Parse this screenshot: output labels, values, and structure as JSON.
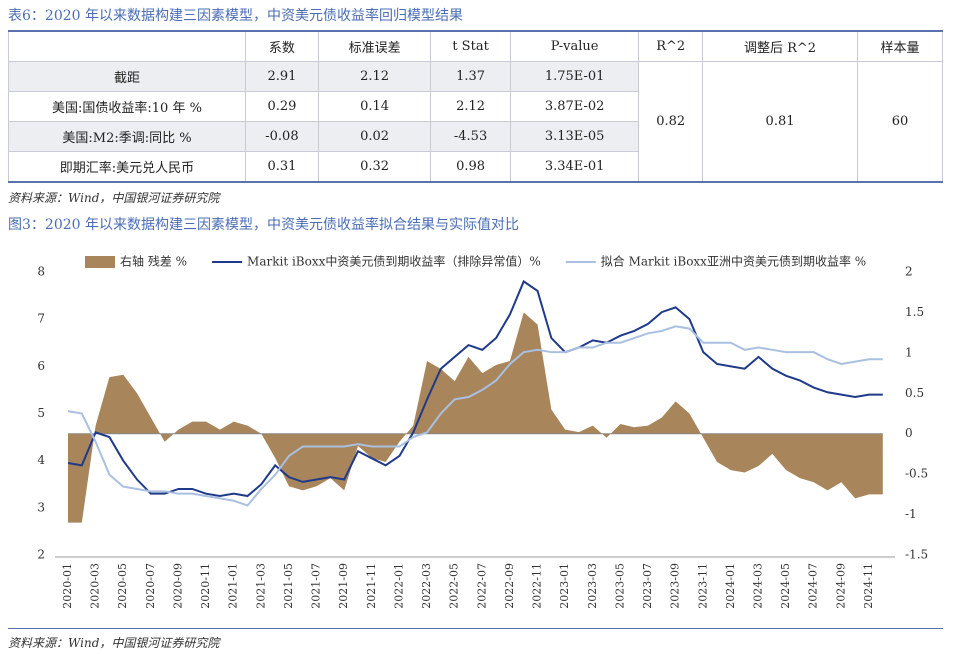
{
  "table": {
    "caption": "表6：2020 年以来数据构建三因素模型，中资美元债收益率回归模型结果",
    "columns": [
      "系数",
      "标准误差",
      "t Stat",
      "P-value",
      "R^2",
      "调整后 R^2",
      "样本量"
    ],
    "rows": [
      [
        "截距",
        "2.91",
        "2.12",
        "1.37",
        "1.75E-01"
      ],
      [
        "美国:国债收益率:10 年 %",
        "0.29",
        "0.14",
        "2.12",
        "3.87E-02"
      ],
      [
        "美国:M2:季调:同比 %",
        "-0.08",
        "0.02",
        "-4.53",
        "3.13E-05"
      ],
      [
        "即期汇率:美元兑人民币",
        "0.31",
        "0.32",
        "0.98",
        "3.34E-01"
      ]
    ],
    "stats": [
      "0.82",
      "0.81",
      "60"
    ],
    "source": "资料来源：Wind，中国银河证券研究院"
  },
  "chart_data": {
    "type": "line",
    "title": "图3：2020 年以来数据构建三因素模型，中资美元债收益率拟合结果与实际值对比",
    "source": "资料来源：Wind，中国银河证券研究院",
    "legend": "top",
    "categories": [
      "2020-01",
      null,
      "2020-03",
      null,
      "2020-05",
      null,
      "2020-07",
      null,
      "2020-09",
      null,
      "2020-11",
      null,
      "2021-01",
      null,
      "2021-03",
      null,
      "2021-05",
      null,
      "2021-07",
      null,
      "2021-09",
      null,
      "2021-11",
      null,
      "2022-01",
      null,
      "2022-03",
      null,
      "2022-05",
      null,
      "2022-07",
      null,
      "2022-09",
      null,
      "2022-11",
      null,
      "2023-01",
      null,
      "2023-03",
      null,
      "2023-05",
      null,
      "2023-07",
      null,
      "2023-09",
      null,
      "2023-11",
      null,
      "2024-01",
      null,
      "2024-03",
      null,
      "2024-05",
      null,
      "2024-07",
      null,
      "2024-09",
      null,
      "2024-11",
      null
    ],
    "series": [
      {
        "name": "右轴 残差 %",
        "kind": "area",
        "axis": "y2",
        "color": "#a8855a",
        "values": [
          -1.1,
          -1.1,
          0.1,
          0.7,
          0.73,
          0.5,
          0.2,
          -0.1,
          0.05,
          0.15,
          0.15,
          0.05,
          0.15,
          0.1,
          0.0,
          -0.3,
          -0.65,
          -0.7,
          -0.65,
          -0.55,
          -0.7,
          -0.15,
          -0.3,
          -0.35,
          -0.1,
          0.1,
          0.9,
          0.8,
          0.65,
          0.95,
          0.75,
          0.85,
          0.9,
          1.5,
          1.35,
          0.3,
          0.05,
          0.02,
          0.1,
          -0.05,
          0.12,
          0.08,
          0.1,
          0.2,
          0.4,
          0.25,
          -0.05,
          -0.35,
          -0.45,
          -0.48,
          -0.4,
          -0.25,
          -0.45,
          -0.55,
          -0.6,
          -0.7,
          -0.6,
          -0.8,
          -0.75,
          -0.75
        ]
      },
      {
        "name": "Markit iBoxx中资美元债到期收益率（排除异常值）%",
        "kind": "line",
        "color": "#1f3a8a",
        "values": [
          3.95,
          3.9,
          4.6,
          4.5,
          4.0,
          3.6,
          3.3,
          3.3,
          3.4,
          3.4,
          3.3,
          3.25,
          3.3,
          3.25,
          3.5,
          3.9,
          3.65,
          3.55,
          3.6,
          3.65,
          3.6,
          4.2,
          4.05,
          3.9,
          4.1,
          4.6,
          5.3,
          5.95,
          6.2,
          6.45,
          6.35,
          6.6,
          7.1,
          7.8,
          7.6,
          6.6,
          6.3,
          6.4,
          6.55,
          6.5,
          6.65,
          6.75,
          6.9,
          7.15,
          7.25,
          7.0,
          6.3,
          6.05,
          6.0,
          5.95,
          6.2,
          5.95,
          5.8,
          5.7,
          5.55,
          5.45,
          5.4,
          5.35,
          5.4,
          5.4
        ]
      },
      {
        "name": "拟合 Markit iBoxx亚洲中资美元债到期收益率 %",
        "kind": "line",
        "color": "#a9c0e0",
        "values": [
          5.05,
          5.0,
          4.4,
          3.7,
          3.45,
          3.4,
          3.35,
          3.35,
          3.3,
          3.3,
          3.25,
          3.2,
          3.15,
          3.05,
          3.4,
          3.7,
          4.1,
          4.3,
          4.3,
          4.3,
          4.3,
          4.35,
          4.3,
          4.3,
          4.3,
          4.5,
          4.6,
          5.0,
          5.3,
          5.35,
          5.5,
          5.7,
          6.05,
          6.3,
          6.35,
          6.3,
          6.3,
          6.4,
          6.4,
          6.5,
          6.5,
          6.6,
          6.7,
          6.75,
          6.85,
          6.8,
          6.5,
          6.5,
          6.5,
          6.35,
          6.4,
          6.35,
          6.3,
          6.3,
          6.3,
          6.15,
          6.05,
          6.1,
          6.15,
          6.15
        ]
      }
    ],
    "ylim": [
      2,
      8
    ],
    "yticks": [
      2,
      3,
      4,
      5,
      6,
      7,
      8
    ],
    "y2lim": [
      -1.5,
      2
    ],
    "y2ticks": [
      -1.5,
      -1,
      -0.5,
      0,
      0.5,
      1,
      1.5,
      2
    ]
  }
}
